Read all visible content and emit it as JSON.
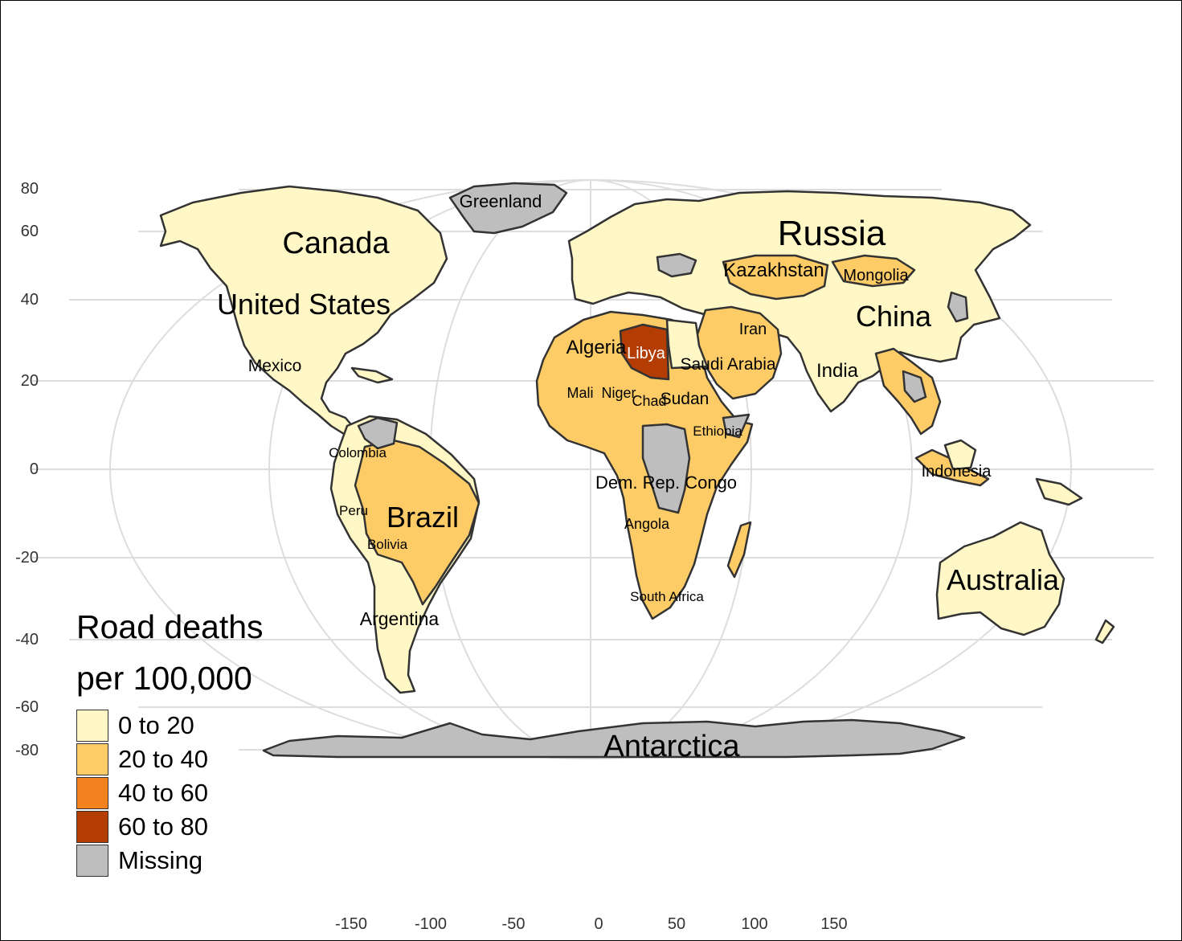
{
  "colors": {
    "bin_0_20": "#FFF7C6",
    "bin_20_40": "#FECC67",
    "bin_40_60": "#F3811E",
    "bin_60_80": "#B43D03",
    "missing": "#BEBEBE",
    "border": "#333333",
    "grid": "#DDDDDD"
  },
  "axes": {
    "y_ticks": [
      "80",
      "60",
      "40",
      "20",
      "0",
      "-20",
      "-40",
      "-60",
      "-80"
    ],
    "x_ticks": [
      "-150",
      "-100",
      "-50",
      "0",
      "50",
      "100",
      "150"
    ]
  },
  "legend": {
    "title_line1": "Road deaths",
    "title_line2": "per 100,000",
    "items": [
      {
        "label": "0 to 20",
        "color": "#FFF7C6"
      },
      {
        "label": "20 to 40",
        "color": "#FECC67"
      },
      {
        "label": "40 to 60",
        "color": "#F3811E"
      },
      {
        "label": "60 to 80",
        "color": "#B43D03"
      },
      {
        "label": "Missing",
        "color": "#BEBEBE"
      }
    ]
  },
  "countries": {
    "russia": "Russia",
    "canada": "Canada",
    "united_states": "United States",
    "china": "China",
    "brazil": "Brazil",
    "australia": "Australia",
    "antarctica": "Antarctica",
    "greenland": "Greenland",
    "kazakhstan": "Kazakhstan",
    "mongolia": "Mongolia",
    "iran": "Iran",
    "algeria": "Algeria",
    "libya": "Libya",
    "saudi_arabia": "Saudi Arabia",
    "india": "India",
    "mexico": "Mexico",
    "mali": "Mali",
    "niger": "Niger",
    "chad": "Chad",
    "sudan": "Sudan",
    "ethiopia": "Ethiopia",
    "colombia": "Colombia",
    "dem_rep_congo": "Dem. Rep. Congo",
    "indonesia": "Indonesia",
    "peru": "Peru",
    "angola": "Angola",
    "bolivia": "Bolivia",
    "south_africa": "South Africa",
    "argentina": "Argentina"
  }
}
